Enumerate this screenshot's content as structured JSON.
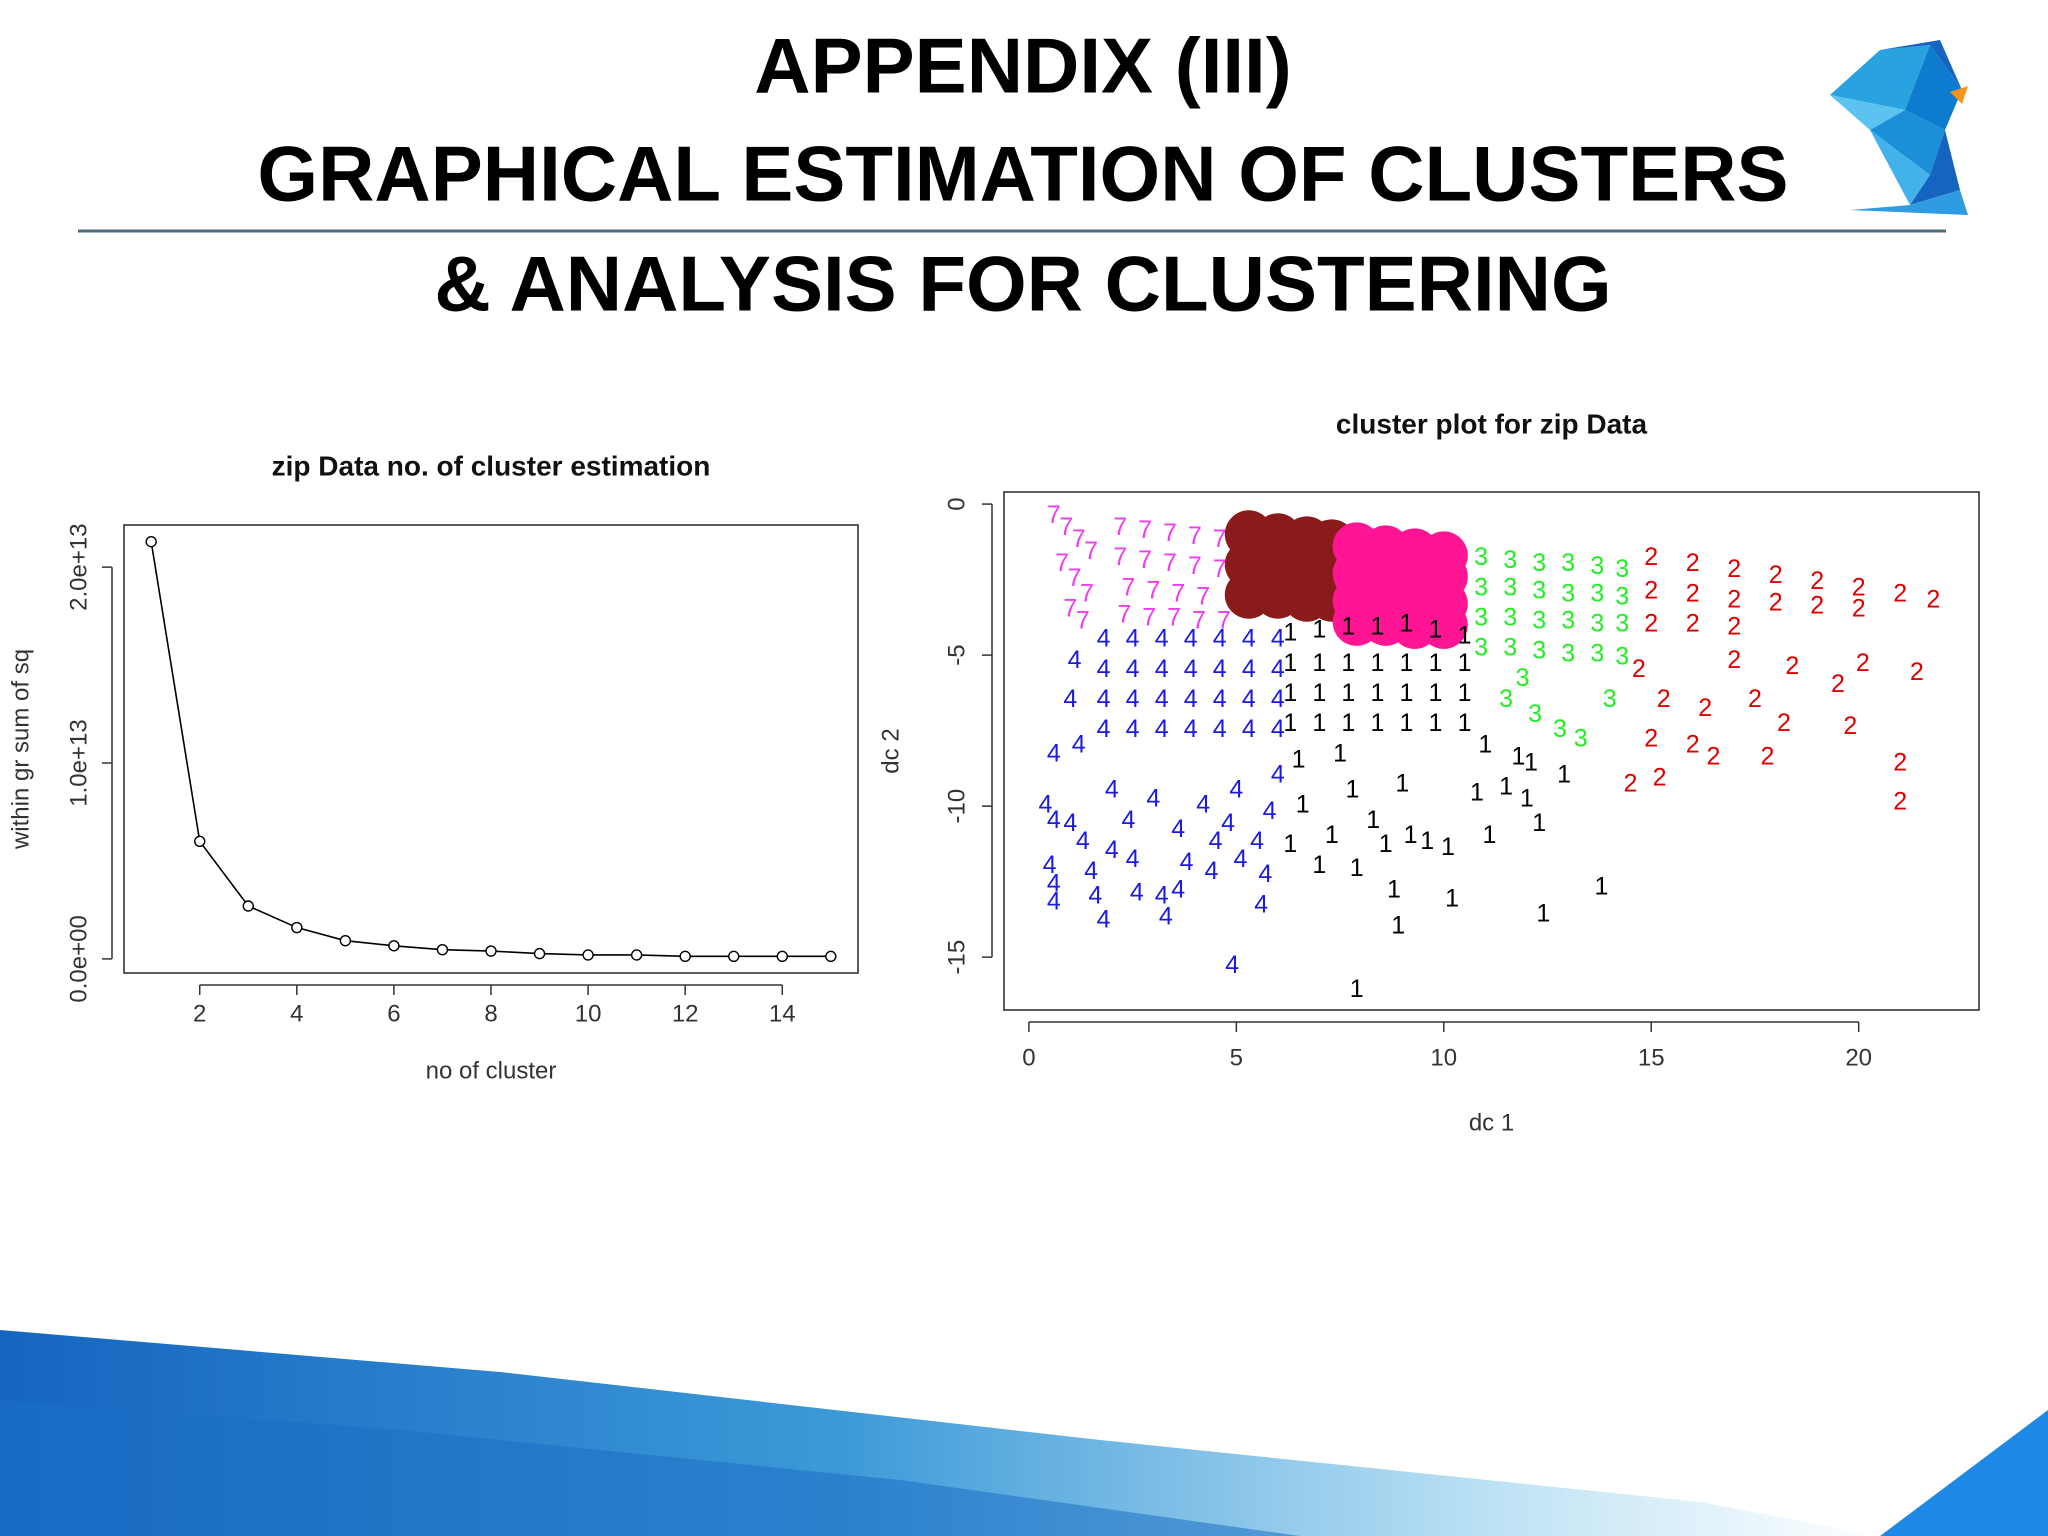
{
  "slide": {
    "title": [
      "APPENDIX (III)",
      "GRAPHICAL ESTIMATION OF CLUSTERS",
      "& ANALYSIS FOR CLUSTERING"
    ]
  },
  "chart_data": [
    {
      "type": "line",
      "title": "zip Data no. of cluster estimation",
      "x_label": "no of cluster",
      "y_label": "within gr sum of sq",
      "x": [
        1,
        2,
        3,
        4,
        5,
        6,
        7,
        8,
        9,
        10,
        11,
        12,
        13,
        14,
        15
      ],
      "values": [
        21300000000000,
        6000000000000,
        2700000000000,
        1600000000000,
        930000000000,
        670000000000,
        470000000000,
        400000000000,
        270000000000,
        200000000000,
        200000000000,
        130000000000,
        130000000000,
        130000000000,
        130000000000
      ],
      "color": "#000000",
      "xlim": [
        0.44,
        15.56
      ],
      "xticks": [
        2,
        4,
        6,
        8,
        10,
        12,
        14
      ],
      "ylim": [
        -720000000000,
        22150000000000
      ],
      "yticks": [
        {
          "value": 0,
          "label": "0.0e+00"
        },
        {
          "value": 10000000000000,
          "label": "1.0e+13"
        },
        {
          "value": 20000000000000,
          "label": "2.0e+13"
        }
      ]
    },
    {
      "type": "scatter",
      "title": "cluster plot for zip Data",
      "x_label": "dc 1",
      "y_label": "dc 2",
      "xlim": [
        -0.6,
        22.9
      ],
      "xticks": [
        0,
        5,
        10,
        15,
        20
      ],
      "ylim": [
        -16.75,
        0.4
      ],
      "yticks": [
        0,
        -5,
        -10,
        -15
      ],
      "series": [
        {
          "label": "7",
          "color": "#f03cf0",
          "x": [
            0.6,
            0.9,
            1.2,
            1.5,
            0.8,
            1.1,
            1.4,
            1.0,
            1.3,
            2.2,
            2.8,
            3.4,
            4.0,
            4.6,
            2.2,
            2.8,
            3.4,
            4.0,
            4.6,
            2.4,
            3.0,
            3.6,
            4.2,
            2.3,
            2.9,
            3.5,
            4.1,
            4.7
          ],
          "y": [
            -0.4,
            -0.8,
            -1.2,
            -1.6,
            -2.0,
            -2.5,
            -3.0,
            -3.5,
            -3.9,
            -0.8,
            -0.9,
            -1.0,
            -1.1,
            -1.2,
            -1.8,
            -1.9,
            -2.0,
            -2.1,
            -2.2,
            -2.8,
            -2.9,
            -3.0,
            -3.1,
            -3.7,
            -3.8,
            -3.8,
            -3.9,
            -3.9
          ]
        },
        {
          "color": "#8b1a1a",
          "x": [
            5.3,
            6.0,
            6.7,
            7.3,
            5.3,
            6.0,
            6.7,
            7.3,
            5.3,
            6.0,
            6.7,
            7.3
          ],
          "y": [
            -1.0,
            -1.1,
            -1.2,
            -1.3,
            -2.0,
            -2.0,
            -2.1,
            -2.1,
            -3.0,
            -3.0,
            -3.1,
            -3.1
          ]
        },
        {
          "color": "#ff1493",
          "x": [
            7.9,
            8.6,
            9.3,
            10.0,
            7.9,
            8.6,
            9.3,
            10.0,
            7.9,
            8.6,
            9.3,
            10.0,
            7.9,
            8.6,
            9.3,
            10.0
          ],
          "y": [
            -1.4,
            -1.5,
            -1.6,
            -1.7,
            -2.3,
            -2.3,
            -2.4,
            -2.4,
            -3.2,
            -3.2,
            -3.3,
            -3.3,
            -3.9,
            -3.9,
            -4.0,
            -4.0
          ]
        },
        {
          "label": "3",
          "color": "#22ee22",
          "x": [
            10.9,
            11.6,
            12.3,
            13.0,
            13.7,
            14.3,
            10.9,
            11.6,
            12.3,
            13.0,
            13.7,
            14.3,
            10.9,
            11.6,
            12.3,
            13.0,
            13.7,
            14.3,
            10.9,
            11.6,
            12.3,
            13.0,
            13.7,
            14.3,
            11.5,
            12.2,
            12.8,
            13.3,
            14.0,
            11.9
          ],
          "y": [
            -1.8,
            -1.9,
            -2.0,
            -2.0,
            -2.1,
            -2.2,
            -2.8,
            -2.8,
            -2.9,
            -3.0,
            -3.0,
            -3.1,
            -3.8,
            -3.8,
            -3.9,
            -3.9,
            -4.0,
            -4.0,
            -4.8,
            -4.8,
            -4.9,
            -5.0,
            -5.0,
            -5.1,
            -6.5,
            -7.0,
            -7.5,
            -7.8,
            -6.5,
            -5.8
          ]
        },
        {
          "label": "2",
          "color": "#e00000",
          "x": [
            15,
            16,
            17,
            18,
            19,
            20,
            21,
            21.8,
            15,
            16,
            17,
            18,
            19,
            20,
            15,
            16,
            17,
            14.7,
            15.3,
            16.3,
            17.5,
            18.2,
            19.5,
            20.1,
            21.4,
            14.5,
            15.2,
            16.5,
            17.8,
            19.8,
            21.0,
            21.0,
            15.0,
            16.0,
            17.0,
            18.4
          ],
          "y": [
            -1.8,
            -2.0,
            -2.2,
            -2.4,
            -2.6,
            -2.8,
            -3.0,
            -3.2,
            -2.9,
            -3.0,
            -3.2,
            -3.3,
            -3.4,
            -3.5,
            -4.0,
            -4.0,
            -4.1,
            -5.5,
            -6.5,
            -6.8,
            -6.5,
            -7.3,
            -6.0,
            -5.3,
            -5.6,
            -9.3,
            -9.1,
            -8.4,
            -8.4,
            -7.4,
            -8.6,
            -9.9,
            -7.8,
            -8.0,
            -5.2,
            -5.4
          ]
        },
        {
          "label": "4",
          "color": "#1a1ae0",
          "x": [
            1.8,
            2.5,
            3.2,
            3.9,
            4.6,
            5.3,
            6.0,
            1.8,
            2.5,
            3.2,
            3.9,
            4.6,
            5.3,
            6.0,
            1.8,
            2.5,
            3.2,
            3.9,
            4.6,
            5.3,
            6.0,
            1.8,
            2.5,
            3.2,
            3.9,
            4.6,
            5.3,
            6.0,
            0.4,
            0.6,
            0.5,
            0.6,
            0.6,
            0.6,
            1.0,
            1.3,
            1.5,
            1.6,
            1.8,
            2.0,
            2.5,
            2.6,
            3.2,
            3.3,
            3.6,
            3.8,
            4.4,
            4.5,
            5.1,
            5.5,
            5.7,
            5.6,
            4.9,
            2.0,
            3.0,
            4.2,
            5.0,
            5.8,
            1.2,
            1.0,
            1.1,
            2.4,
            3.6,
            4.8,
            6.0
          ],
          "y": [
            -4.5,
            -4.5,
            -4.5,
            -4.5,
            -4.5,
            -4.5,
            -4.5,
            -5.5,
            -5.5,
            -5.5,
            -5.5,
            -5.5,
            -5.5,
            -5.5,
            -6.5,
            -6.5,
            -6.5,
            -6.5,
            -6.5,
            -6.5,
            -6.5,
            -7.5,
            -7.5,
            -7.5,
            -7.5,
            -7.5,
            -7.5,
            -7.5,
            -10.0,
            -10.5,
            -12.0,
            -12.6,
            -13.2,
            -8.3,
            -10.6,
            -11.2,
            -12.2,
            -13.0,
            -13.8,
            -11.5,
            -11.8,
            -12.9,
            -13.0,
            -13.7,
            -12.8,
            -11.9,
            -12.2,
            -11.2,
            -11.8,
            -11.2,
            -12.3,
            -13.3,
            -15.3,
            -9.5,
            -9.8,
            -10.0,
            -9.5,
            -10.2,
            -8.0,
            -6.5,
            -5.2,
            -10.5,
            -10.8,
            -10.6,
            -9.0
          ]
        },
        {
          "label": "1",
          "color": "#000000",
          "x": [
            6.3,
            7.0,
            7.7,
            8.4,
            9.1,
            9.8,
            10.5,
            6.3,
            7.0,
            7.7,
            8.4,
            9.1,
            9.8,
            10.5,
            6.3,
            7.0,
            7.7,
            8.4,
            9.1,
            9.8,
            10.5,
            6.3,
            7.0,
            7.7,
            8.4,
            9.1,
            9.8,
            10.5,
            6.3,
            6.6,
            7.0,
            7.3,
            7.8,
            7.9,
            8.3,
            8.6,
            8.8,
            8.9,
            9.0,
            9.2,
            9.6,
            10.1,
            10.2,
            10.8,
            11.1,
            11.5,
            12.0,
            12.3,
            12.4,
            12.1,
            12.9,
            13.8,
            7.9,
            11.0,
            11.8,
            6.5,
            7.5
          ],
          "y": [
            -4.3,
            -4.2,
            -4.1,
            -4.1,
            -4.0,
            -4.2,
            -4.4,
            -5.3,
            -5.3,
            -5.3,
            -5.3,
            -5.3,
            -5.3,
            -5.3,
            -6.3,
            -6.3,
            -6.3,
            -6.3,
            -6.3,
            -6.3,
            -6.3,
            -7.3,
            -7.3,
            -7.3,
            -7.3,
            -7.3,
            -7.3,
            -7.3,
            -11.3,
            -10.0,
            -12.0,
            -11.0,
            -9.5,
            -12.1,
            -10.5,
            -11.3,
            -12.8,
            -14.0,
            -9.3,
            -11.0,
            -11.2,
            -11.4,
            -13.1,
            -9.6,
            -11.0,
            -9.4,
            -9.8,
            -10.6,
            -13.6,
            -8.6,
            -9.0,
            -12.7,
            -16.1,
            -8.0,
            -8.4,
            -8.5,
            -8.3
          ]
        }
      ]
    }
  ]
}
